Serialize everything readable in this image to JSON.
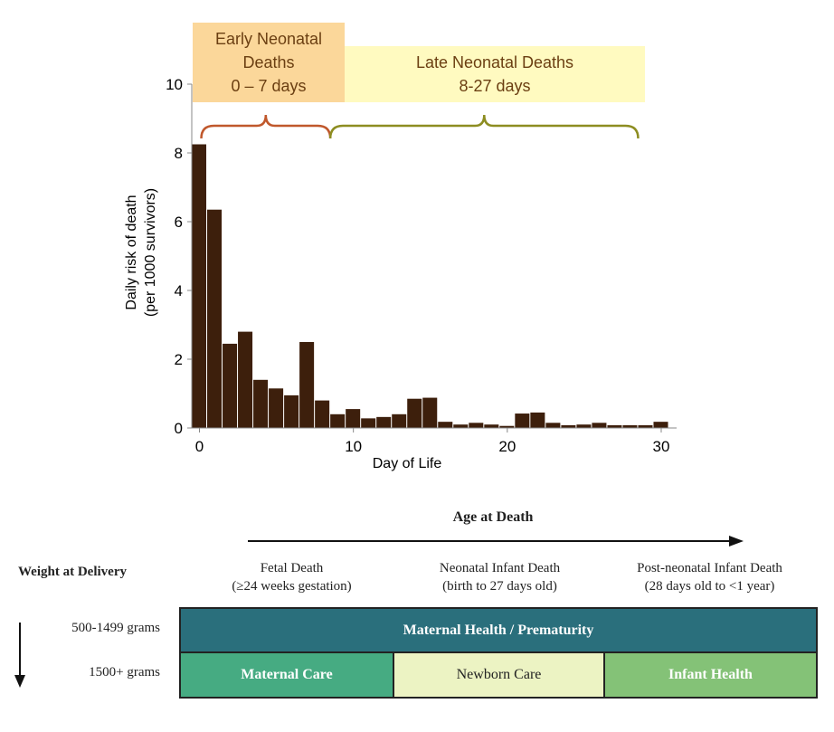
{
  "chart_data": {
    "type": "bar",
    "xlabel": "Day of Life",
    "ylabel": [
      "Daily risk of death",
      "(per 1000 survivors)"
    ],
    "xlim": [
      -0.5,
      31
    ],
    "ylim": [
      0,
      10
    ],
    "x_ticks": [
      0,
      10,
      20,
      30
    ],
    "y_ticks": [
      0,
      2,
      4,
      6,
      8,
      10
    ],
    "x": [
      0,
      1,
      2,
      3,
      4,
      5,
      6,
      7,
      8,
      9,
      10,
      11,
      12,
      13,
      14,
      15,
      16,
      17,
      18,
      19,
      20,
      21,
      22,
      23,
      24,
      25,
      26,
      27,
      28,
      29,
      30
    ],
    "values": [
      8.25,
      6.35,
      2.45,
      2.8,
      1.4,
      1.15,
      0.95,
      2.5,
      0.8,
      0.4,
      0.55,
      0.28,
      0.32,
      0.4,
      0.85,
      0.88,
      0.18,
      0.1,
      0.15,
      0.1,
      0.06,
      0.42,
      0.45,
      0.15,
      0.08,
      0.1,
      0.15,
      0.08,
      0.08,
      0.08,
      0.18
    ],
    "bar_color": "#3d1f0c",
    "periods": [
      {
        "label_lines": [
          "Early Neonatal",
          "Deaths",
          "0 – 7 days"
        ],
        "from_day": 0,
        "to_day": 8.5,
        "box_color": "#fbd79a",
        "brace_color": "#c0582c",
        "text_color": "#6b3f12"
      },
      {
        "label_lines": [
          "Late Neonatal  Deaths",
          "8-27 days"
        ],
        "from_day": 8.5,
        "to_day": 28.5,
        "box_color": "#fffac0",
        "brace_color": "#8d8d21",
        "text_color": "#6b3f12"
      }
    ]
  },
  "lower_table": {
    "axis_label": "Age at Death",
    "weight_label": "Weight at Delivery",
    "periods": [
      {
        "title": "Fetal Death",
        "subtitle": "(≥24 weeks gestation)"
      },
      {
        "title": "Neonatal Infant Death",
        "subtitle": "(birth to 27 days old)"
      },
      {
        "title": "Post-neonatal Infant Death",
        "subtitle": "(28 days old to <1 year)"
      }
    ],
    "weight_rows": [
      "500-1499 grams",
      "1500+ grams"
    ],
    "bands": {
      "maternal_health": "Maternal Health / Prematurity",
      "maternal_care": "Maternal Care",
      "newborn_care": "Newborn Care",
      "infant_health": "Infant Health"
    }
  }
}
